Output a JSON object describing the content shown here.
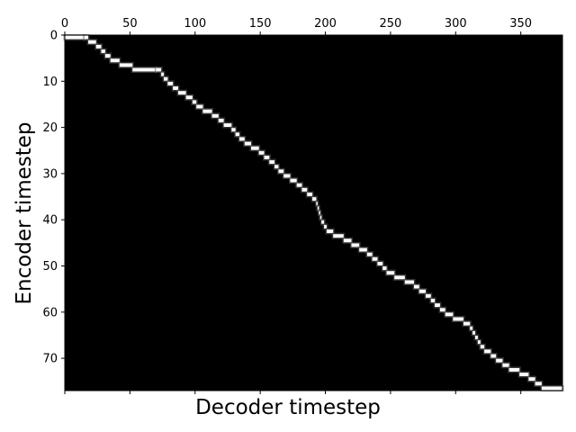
{
  "chart_data": {
    "type": "heatmap",
    "title": "",
    "xlabel": "Decoder timestep",
    "ylabel": "Encoder timestep",
    "xlim": [
      0,
      382
    ],
    "ylim": [
      0,
      77
    ],
    "y_inverted": true,
    "x_ticks_position": "top",
    "x_ticks": [
      {
        "value": 0,
        "label": "0"
      },
      {
        "value": 50,
        "label": "50"
      },
      {
        "value": 100,
        "label": "100"
      },
      {
        "value": 150,
        "label": "150"
      },
      {
        "value": 200,
        "label": "200"
      },
      {
        "value": 250,
        "label": "250"
      },
      {
        "value": 300,
        "label": "300"
      },
      {
        "value": 350,
        "label": "350"
      }
    ],
    "y_ticks": [
      {
        "value": 0,
        "label": "0"
      },
      {
        "value": 10,
        "label": "10"
      },
      {
        "value": 20,
        "label": "20"
      },
      {
        "value": 30,
        "label": "30"
      },
      {
        "value": 40,
        "label": "40"
      },
      {
        "value": 50,
        "label": "50"
      },
      {
        "value": 60,
        "label": "60"
      },
      {
        "value": 70,
        "label": "70"
      }
    ],
    "colormap": "gray",
    "background_color": "#000000",
    "highlight_color": "#ffffff",
    "alignment_path": [
      [
        0,
        0
      ],
      [
        15,
        0
      ],
      [
        18,
        1
      ],
      [
        24,
        2
      ],
      [
        28,
        3
      ],
      [
        31,
        4
      ],
      [
        35,
        5
      ],
      [
        42,
        6
      ],
      [
        52,
        7
      ],
      [
        70,
        7
      ],
      [
        74,
        8
      ],
      [
        76,
        9
      ],
      [
        79,
        10
      ],
      [
        83,
        11
      ],
      [
        87,
        12
      ],
      [
        93,
        13
      ],
      [
        98,
        14
      ],
      [
        101,
        15
      ],
      [
        106,
        16
      ],
      [
        113,
        17
      ],
      [
        118,
        18
      ],
      [
        122,
        19
      ],
      [
        128,
        20
      ],
      [
        131,
        21
      ],
      [
        134,
        22
      ],
      [
        138,
        23
      ],
      [
        143,
        24
      ],
      [
        149,
        25
      ],
      [
        153,
        26
      ],
      [
        157,
        27
      ],
      [
        161,
        28
      ],
      [
        164,
        29
      ],
      [
        168,
        30
      ],
      [
        173,
        31
      ],
      [
        178,
        32
      ],
      [
        182,
        33
      ],
      [
        186,
        34
      ],
      [
        190,
        35
      ],
      [
        193,
        36
      ],
      [
        194,
        37
      ],
      [
        195,
        38
      ],
      [
        196,
        39
      ],
      [
        197,
        40
      ],
      [
        199,
        41
      ],
      [
        201,
        42
      ],
      [
        206,
        43
      ],
      [
        214,
        44
      ],
      [
        220,
        45
      ],
      [
        226,
        46
      ],
      [
        232,
        47
      ],
      [
        236,
        48
      ],
      [
        240,
        49
      ],
      [
        244,
        50
      ],
      [
        247,
        51
      ],
      [
        253,
        52
      ],
      [
        261,
        53
      ],
      [
        268,
        54
      ],
      [
        272,
        55
      ],
      [
        277,
        56
      ],
      [
        281,
        57
      ],
      [
        284,
        58
      ],
      [
        288,
        59
      ],
      [
        292,
        60
      ],
      [
        298,
        61
      ],
      [
        306,
        62
      ],
      [
        311,
        63
      ],
      [
        313,
        64
      ],
      [
        315,
        65
      ],
      [
        317,
        66
      ],
      [
        319,
        67
      ],
      [
        322,
        68
      ],
      [
        327,
        69
      ],
      [
        331,
        70
      ],
      [
        336,
        71
      ],
      [
        341,
        72
      ],
      [
        349,
        73
      ],
      [
        356,
        74
      ],
      [
        361,
        75
      ],
      [
        366,
        76
      ],
      [
        382,
        76
      ]
    ]
  }
}
